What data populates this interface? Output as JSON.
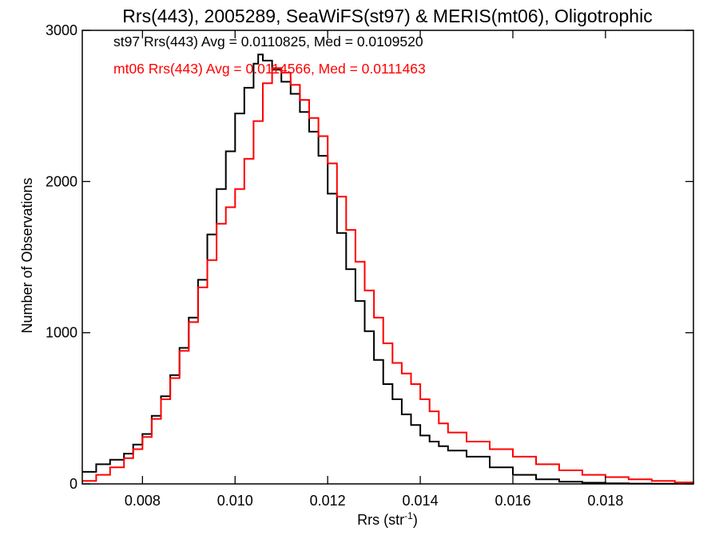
{
  "chart_data": {
    "type": "line",
    "step": true,
    "title": "Rrs(443), 2005289, SeaWiFS(st97) & MERIS(mt06), Oligotrophic",
    "xlabel": "Rrs (str",
    "xlabel_superscript": "-1",
    "xlabel_suffix": ")",
    "ylabel": "Number of Observations",
    "xlim": [
      0.0067,
      0.0199
    ],
    "ylim": [
      0,
      3000
    ],
    "xticks": [
      {
        "value": 0.008,
        "label": "0.008"
      },
      {
        "value": 0.01,
        "label": "0.010"
      },
      {
        "value": 0.012,
        "label": "0.012"
      },
      {
        "value": 0.014,
        "label": "0.014"
      },
      {
        "value": 0.016,
        "label": "0.016"
      },
      {
        "value": 0.018,
        "label": "0.018"
      }
    ],
    "yticks": [
      {
        "value": 0,
        "label": "0"
      },
      {
        "value": 1000,
        "label": "1000"
      },
      {
        "value": 2000,
        "label": "2000"
      },
      {
        "value": 3000,
        "label": "3000"
      }
    ],
    "grid": false,
    "annotations": [
      {
        "text": "st97 Rrs(443) Avg = 0.0110825, Med = 0.0109520",
        "color": "#000000"
      },
      {
        "text": "mt06 Rrs(443) Avg = 0.0114566, Med = 0.0111463",
        "color": "#ff0000"
      }
    ],
    "series": [
      {
        "color": "#000000",
        "x": [
          0.0067,
          0.007,
          0.0073,
          0.0076,
          0.0078,
          0.008,
          0.0082,
          0.0084,
          0.0086,
          0.0088,
          0.009,
          0.0092,
          0.0094,
          0.0096,
          0.0098,
          0.01,
          0.0102,
          0.0104,
          0.0105,
          0.0106,
          0.0108,
          0.011,
          0.0112,
          0.0114,
          0.0116,
          0.0118,
          0.012,
          0.0122,
          0.0124,
          0.0126,
          0.0128,
          0.013,
          0.0132,
          0.0134,
          0.0136,
          0.0138,
          0.014,
          0.0142,
          0.0144,
          0.0146,
          0.015,
          0.0155,
          0.016,
          0.0165,
          0.017,
          0.0175,
          0.018,
          0.0185,
          0.019,
          0.0199
        ],
        "y": [
          80,
          130,
          160,
          200,
          260,
          330,
          450,
          580,
          720,
          900,
          1100,
          1350,
          1650,
          1950,
          2200,
          2450,
          2620,
          2780,
          2840,
          2800,
          2740,
          2660,
          2580,
          2460,
          2330,
          2170,
          1920,
          1660,
          1420,
          1210,
          1010,
          820,
          660,
          560,
          460,
          390,
          320,
          280,
          250,
          220,
          180,
          110,
          60,
          30,
          15,
          8,
          4,
          2,
          1,
          0
        ]
      },
      {
        "color": "#ff0000",
        "x": [
          0.0067,
          0.007,
          0.0073,
          0.0076,
          0.0078,
          0.008,
          0.0082,
          0.0084,
          0.0086,
          0.0088,
          0.009,
          0.0092,
          0.0094,
          0.0096,
          0.0098,
          0.01,
          0.0102,
          0.0104,
          0.0106,
          0.0108,
          0.011,
          0.0112,
          0.0114,
          0.0116,
          0.0118,
          0.012,
          0.0122,
          0.0124,
          0.0126,
          0.0128,
          0.013,
          0.0132,
          0.0134,
          0.0136,
          0.0138,
          0.014,
          0.0142,
          0.0144,
          0.0146,
          0.015,
          0.0155,
          0.016,
          0.0165,
          0.017,
          0.0175,
          0.018,
          0.0185,
          0.019,
          0.0195,
          0.0199
        ],
        "y": [
          20,
          60,
          110,
          170,
          230,
          310,
          430,
          560,
          700,
          880,
          1070,
          1300,
          1480,
          1720,
          1830,
          1950,
          2150,
          2400,
          2650,
          2750,
          2720,
          2640,
          2540,
          2420,
          2300,
          2120,
          1900,
          1680,
          1470,
          1280,
          1100,
          930,
          800,
          730,
          660,
          560,
          480,
          400,
          340,
          280,
          230,
          180,
          130,
          90,
          60,
          45,
          30,
          20,
          10,
          5
        ]
      }
    ]
  }
}
